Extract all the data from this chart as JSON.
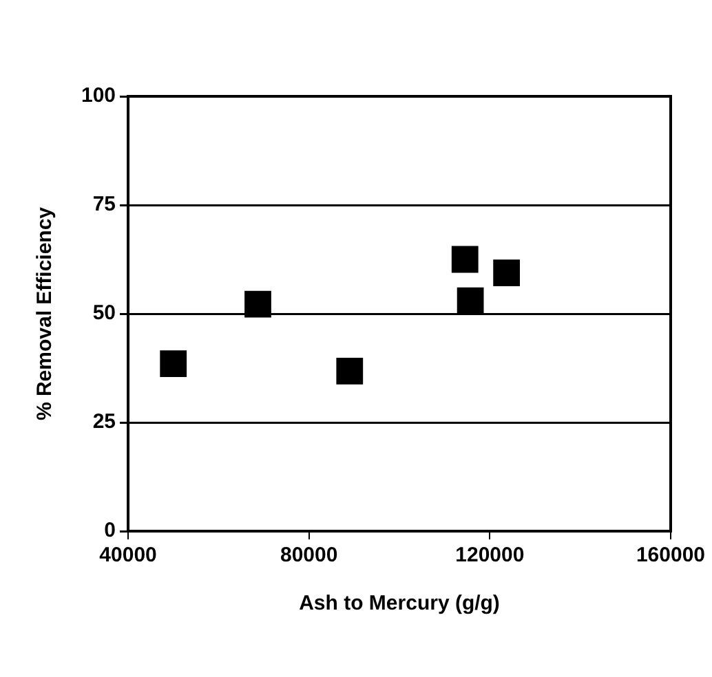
{
  "chart_data": {
    "type": "scatter",
    "xlabel": "Ash to Mercury (g/g)",
    "ylabel": "% Removal Efficiency",
    "x": [
      50000,
      68700,
      89000,
      114500,
      115700,
      123700
    ],
    "values": [
      38.5,
      52.2,
      36.8,
      62.5,
      53,
      59.4
    ],
    "color": "#000000",
    "marker": "square",
    "xlim": [
      40000,
      160000
    ],
    "xticks": [
      40000,
      80000,
      120000,
      160000
    ],
    "ylim": [
      0,
      100
    ],
    "yticks": [
      0,
      25,
      50,
      75,
      100
    ],
    "grid": "y",
    "legend": false
  }
}
